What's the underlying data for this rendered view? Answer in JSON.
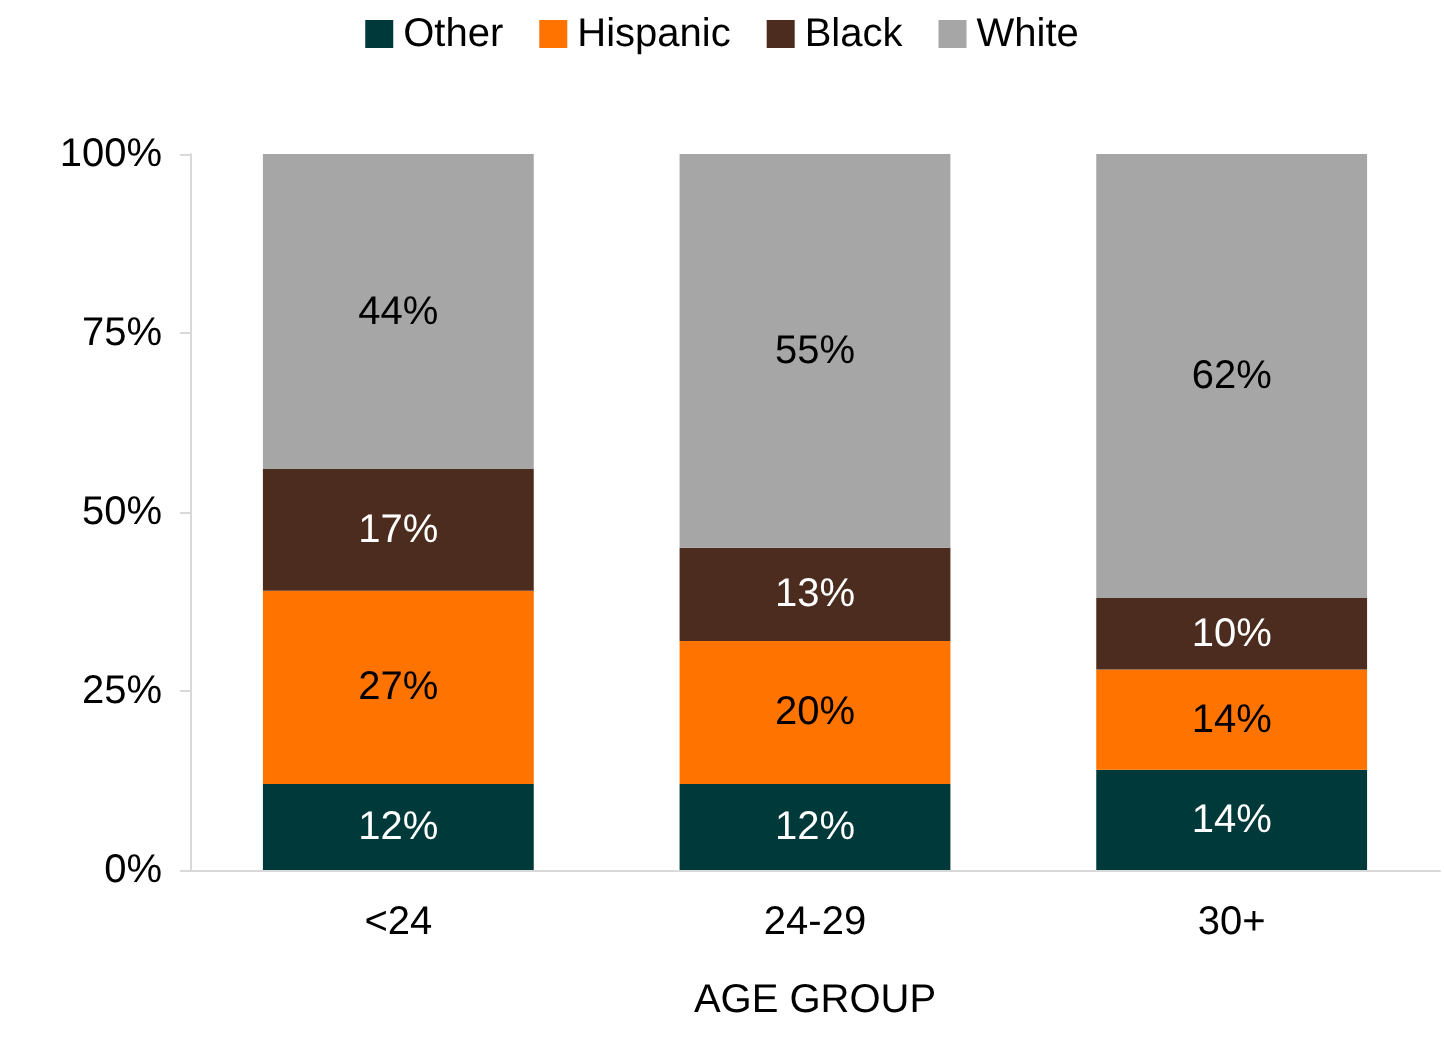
{
  "chart_data": {
    "type": "bar",
    "stacked": true,
    "xlabel": "AGE GROUP",
    "categories": [
      "<24",
      "24-29",
      "30+"
    ],
    "series": [
      {
        "name": "Other",
        "color": "#00393a",
        "values": [
          12,
          12,
          14
        ],
        "value_labels": [
          "12%",
          "12%",
          "14%"
        ]
      },
      {
        "name": "Hispanic",
        "color": "#ff7300",
        "values": [
          27,
          20,
          14
        ],
        "value_labels": [
          "27%",
          "20%",
          "14%"
        ]
      },
      {
        "name": "Black",
        "color": "#4d2c20",
        "values": [
          17,
          13,
          10
        ],
        "value_labels": [
          "17%",
          "13%",
          "10%"
        ]
      },
      {
        "name": "White",
        "color": "#a6a6a6",
        "values": [
          44,
          55,
          62
        ],
        "value_labels": [
          "44%",
          "55%",
          "62%"
        ]
      }
    ],
    "ylim": [
      0,
      100
    ],
    "yticks": [
      {
        "value": 0,
        "label": "0%"
      },
      {
        "value": 25,
        "label": "25%"
      },
      {
        "value": 50,
        "label": "50%"
      },
      {
        "value": 75,
        "label": "75%"
      },
      {
        "value": 100,
        "label": "100%"
      }
    ],
    "grid": false,
    "legend": "top"
  }
}
